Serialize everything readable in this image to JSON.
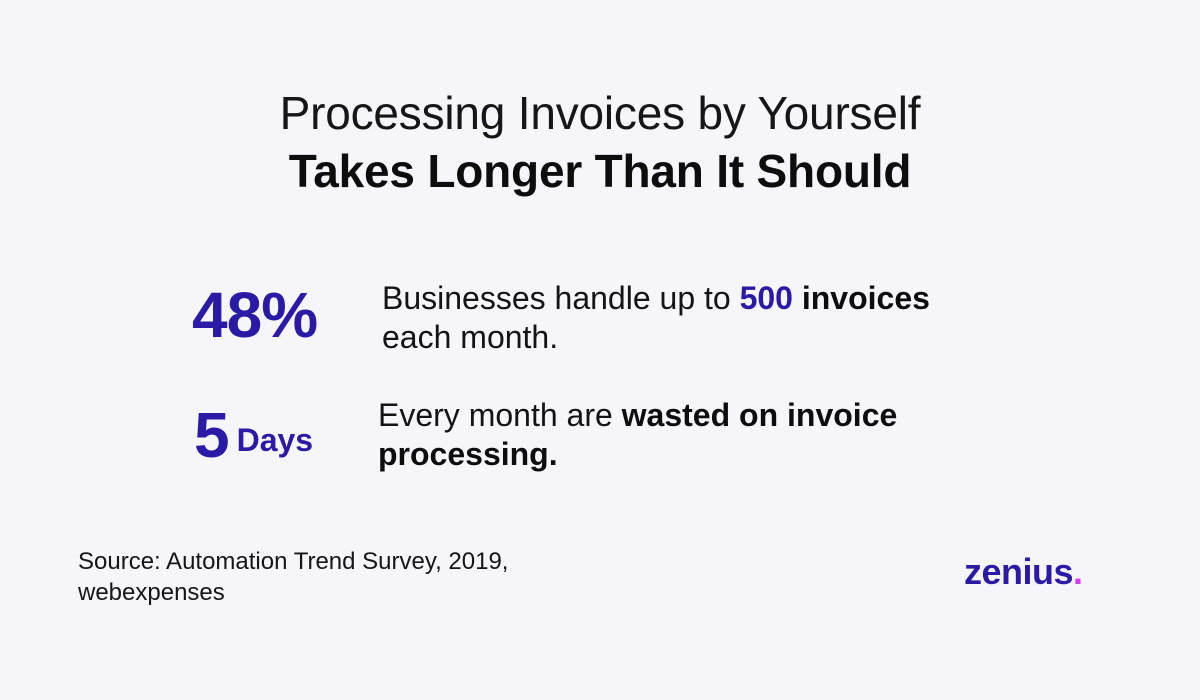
{
  "title": {
    "line1": "Processing Invoices by Yourself",
    "line2": "Takes Longer Than It Should"
  },
  "stats": [
    {
      "value": "48%",
      "text": {
        "part1": "Businesses handle up to ",
        "highlight": "500",
        "part2": " ",
        "bold": "invoices",
        "part3": " each month."
      }
    },
    {
      "value": "5",
      "unit": "Days",
      "text": {
        "part1": "Every month are ",
        "bold": "wasted on invoice processing."
      }
    }
  ],
  "source": {
    "line1": "Source: Automation Trend Survey, 2019,",
    "line2": "webexpenses"
  },
  "logo": {
    "text": "zenius",
    "dot": "."
  },
  "colors": {
    "background": "#f5f5fa",
    "accent": "#2a1aa5",
    "logo_dot": "#d43cf0",
    "text": "#111111"
  }
}
